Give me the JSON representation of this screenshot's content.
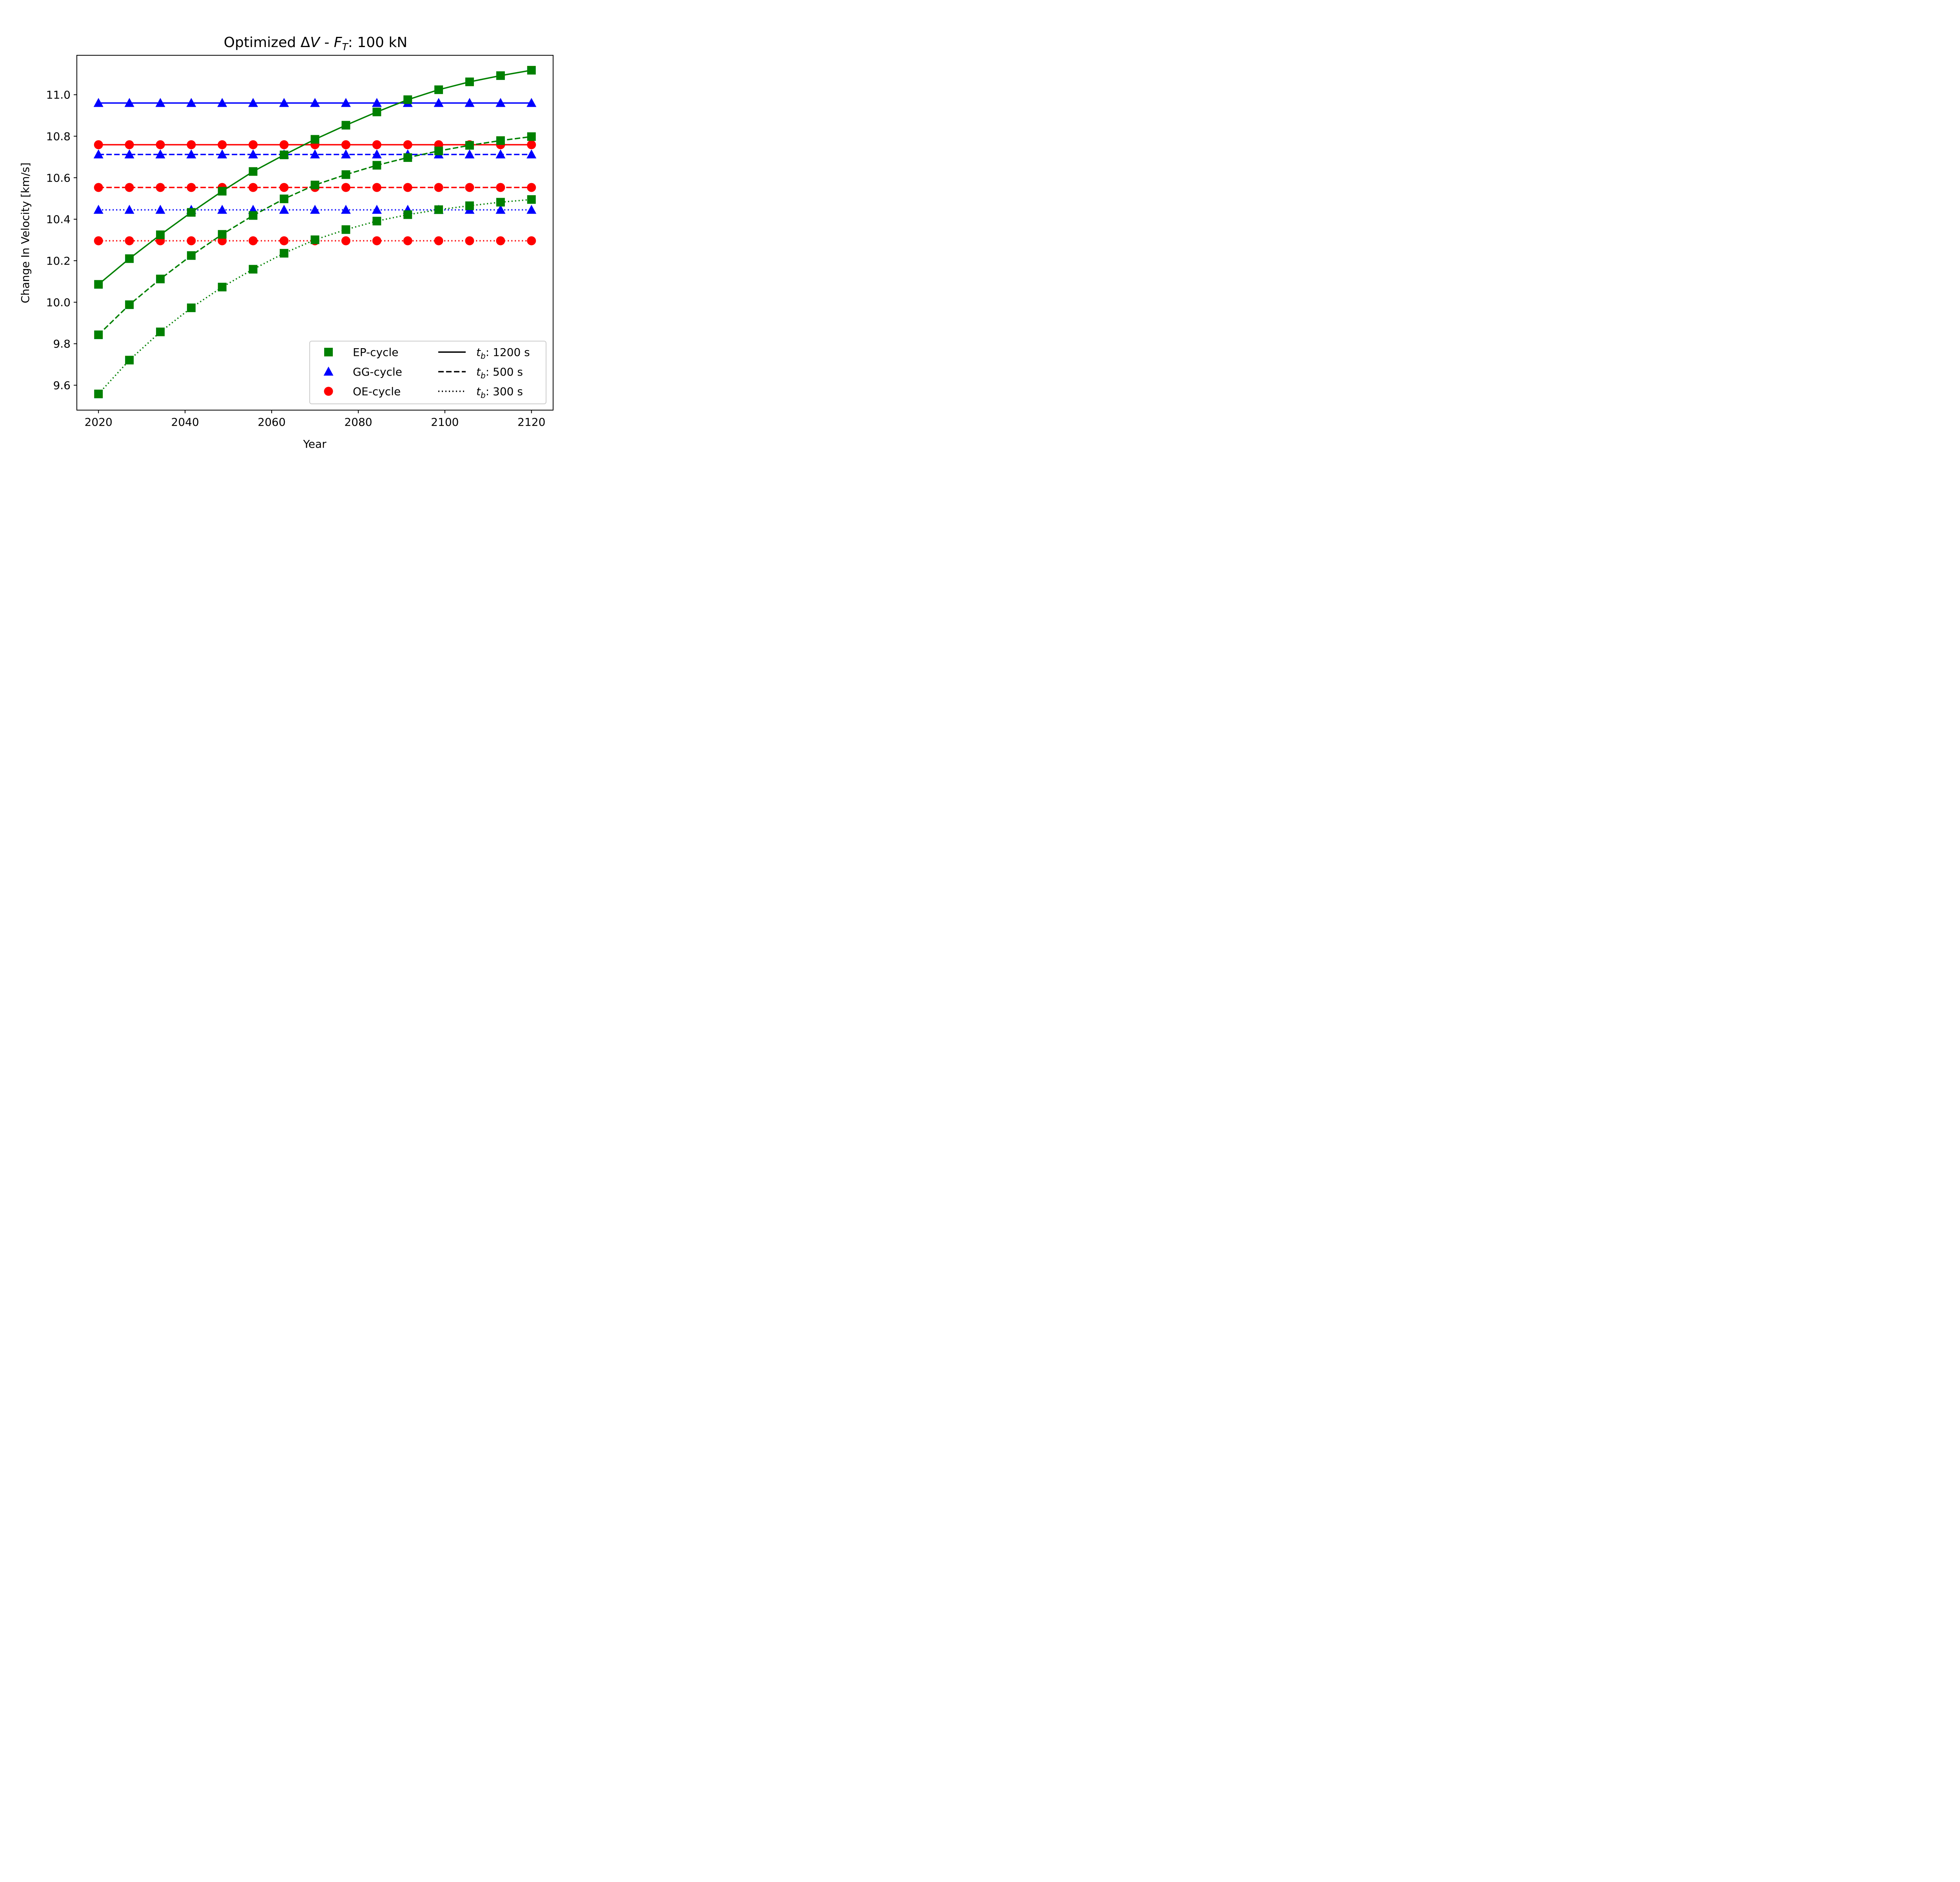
{
  "chart_data": {
    "type": "line",
    "title_parts": [
      "Optimized ",
      "Δ",
      "V",
      " - ",
      "F",
      "T",
      ": 100 kN"
    ],
    "title": "Optimized ΔV - F_T: 100 kN",
    "xlabel": "Year",
    "ylabel": "Change In Velocity [km/s]",
    "xlim": [
      2015,
      2125
    ],
    "ylim": [
      9.48,
      11.19
    ],
    "xticks": [
      2020,
      2040,
      2060,
      2080,
      2100,
      2120
    ],
    "yticks": [
      9.6,
      9.8,
      10.0,
      10.2,
      10.4,
      10.6,
      10.8,
      11.0
    ],
    "x": [
      2020,
      2027.14,
      2034.29,
      2041.43,
      2048.57,
      2055.71,
      2062.86,
      2070,
      2077.14,
      2084.29,
      2091.43,
      2098.57,
      2105.71,
      2112.86,
      2120
    ],
    "series": [
      {
        "cycle": "EP-cycle",
        "tb": "1200 s",
        "color": "#008000",
        "marker": "square",
        "linestyle": "solid",
        "values": [
          10.086,
          10.21,
          10.325,
          10.433,
          10.535,
          10.63,
          10.71,
          10.785,
          10.853,
          10.917,
          10.976,
          11.024,
          11.062,
          11.092,
          11.118
        ]
      },
      {
        "cycle": "EP-cycle",
        "tb": "500 s",
        "color": "#008000",
        "marker": "square",
        "linestyle": "dashed",
        "values": [
          9.843,
          9.988,
          10.112,
          10.225,
          10.327,
          10.418,
          10.498,
          10.565,
          10.615,
          10.66,
          10.697,
          10.729,
          10.756,
          10.779,
          10.798
        ]
      },
      {
        "cycle": "EP-cycle",
        "tb": "300 s",
        "color": "#008000",
        "marker": "square",
        "linestyle": "dotted",
        "values": [
          9.558,
          9.721,
          9.857,
          9.973,
          10.073,
          10.159,
          10.236,
          10.301,
          10.35,
          10.391,
          10.422,
          10.446,
          10.465,
          10.482,
          10.495
        ]
      },
      {
        "cycle": "GG-cycle",
        "tb": "1200 s",
        "color": "#0000ff",
        "marker": "triangle",
        "linestyle": "solid",
        "values": [
          10.96,
          10.96,
          10.96,
          10.96,
          10.96,
          10.96,
          10.96,
          10.96,
          10.96,
          10.96,
          10.96,
          10.96,
          10.96,
          10.96,
          10.96
        ]
      },
      {
        "cycle": "GG-cycle",
        "tb": "500 s",
        "color": "#0000ff",
        "marker": "triangle",
        "linestyle": "dashed",
        "values": [
          10.712,
          10.712,
          10.712,
          10.712,
          10.712,
          10.712,
          10.712,
          10.712,
          10.712,
          10.712,
          10.712,
          10.712,
          10.712,
          10.712,
          10.712
        ]
      },
      {
        "cycle": "GG-cycle",
        "tb": "300 s",
        "color": "#0000ff",
        "marker": "triangle",
        "linestyle": "dotted",
        "values": [
          10.445,
          10.445,
          10.445,
          10.445,
          10.445,
          10.445,
          10.445,
          10.445,
          10.445,
          10.445,
          10.445,
          10.445,
          10.445,
          10.445,
          10.445
        ]
      },
      {
        "cycle": "OE-cycle",
        "tb": "1200 s",
        "color": "#ff0000",
        "marker": "circle",
        "linestyle": "solid",
        "values": [
          10.759,
          10.759,
          10.759,
          10.759,
          10.759,
          10.759,
          10.759,
          10.759,
          10.759,
          10.759,
          10.759,
          10.759,
          10.759,
          10.759,
          10.759
        ]
      },
      {
        "cycle": "OE-cycle",
        "tb": "500 s",
        "color": "#ff0000",
        "marker": "circle",
        "linestyle": "dashed",
        "values": [
          10.553,
          10.553,
          10.553,
          10.553,
          10.553,
          10.553,
          10.553,
          10.553,
          10.553,
          10.553,
          10.553,
          10.553,
          10.553,
          10.553,
          10.553
        ]
      },
      {
        "cycle": "OE-cycle",
        "tb": "300 s",
        "color": "#ff0000",
        "marker": "circle",
        "linestyle": "dotted",
        "values": [
          10.296,
          10.296,
          10.296,
          10.296,
          10.296,
          10.296,
          10.296,
          10.296,
          10.296,
          10.296,
          10.296,
          10.296,
          10.296,
          10.296,
          10.296
        ]
      }
    ],
    "legend": {
      "placement": "lower-right",
      "markers": [
        {
          "label": "EP-cycle",
          "color": "#008000",
          "marker": "square"
        },
        {
          "label": "GG-cycle",
          "color": "#0000ff",
          "marker": "triangle"
        },
        {
          "label": "OE-cycle",
          "color": "#ff0000",
          "marker": "circle"
        }
      ],
      "lines": [
        {
          "symbol": "t",
          "sub": "b",
          "label": ": 1200 s",
          "linestyle": "solid"
        },
        {
          "symbol": "t",
          "sub": "b",
          "label": ": 500 s",
          "linestyle": "dashed"
        },
        {
          "symbol": "t",
          "sub": "b",
          "label": ": 300 s",
          "linestyle": "dotted"
        }
      ]
    },
    "grid": false
  }
}
